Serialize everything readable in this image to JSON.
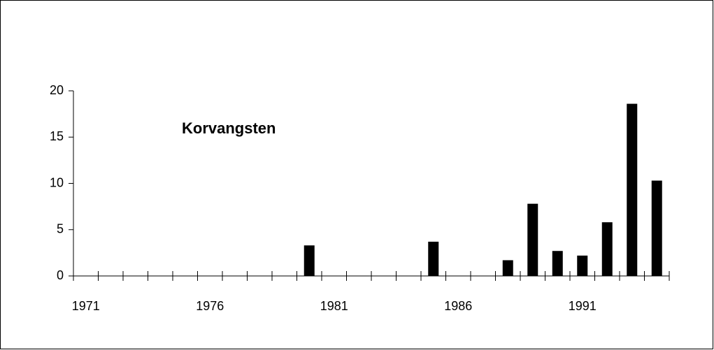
{
  "chart_data": {
    "type": "bar",
    "title": "Korvangsten",
    "categories": [
      "1971",
      null,
      null,
      null,
      null,
      "1976",
      null,
      null,
      null,
      null,
      "1981",
      null,
      null,
      null,
      null,
      "1986",
      null,
      null,
      null,
      null,
      "1991",
      null,
      null,
      null
    ],
    "values": [
      0,
      0,
      0,
      0,
      0,
      0,
      0,
      0,
      0,
      3.3,
      0,
      0,
      0,
      0,
      3.7,
      0,
      0,
      1.7,
      7.8,
      2.7,
      2.2,
      5.8,
      18.6,
      10.3
    ],
    "color": "#000000",
    "ylim": [
      0,
      20
    ],
    "yticks": [
      0,
      5,
      10,
      15,
      20
    ],
    "grid": false
  }
}
